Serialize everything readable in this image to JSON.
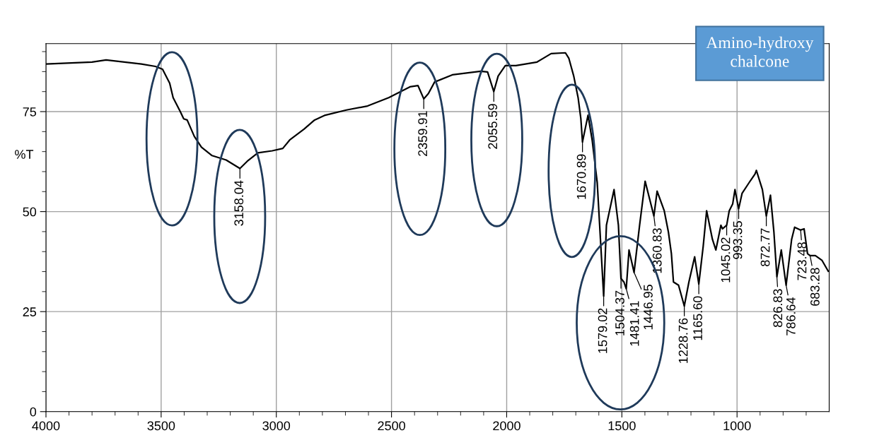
{
  "chart_data": {
    "type": "line",
    "ylabel": "%T",
    "x": [
      4000,
      3800,
      3739,
      3586,
      3525,
      3494,
      3463,
      3448,
      3417,
      3402,
      3387,
      3356,
      3325,
      3279,
      3218,
      3158,
      3126,
      3080,
      3018,
      2972,
      2942,
      2880,
      2834,
      2788,
      2696,
      2604,
      2512,
      2420,
      2385,
      2360,
      2340,
      2313,
      2236,
      2113,
      2083,
      2056,
      2037,
      2006,
      1960,
      1868,
      1807,
      1745,
      1730,
      1709,
      1690,
      1678,
      1671,
      1647,
      1629,
      1607,
      1579,
      1567,
      1534,
      1515,
      1504,
      1491,
      1481,
      1469,
      1447,
      1423,
      1399,
      1361,
      1347,
      1316,
      1298,
      1285,
      1276,
      1254,
      1229,
      1209,
      1184,
      1166,
      1147,
      1132,
      1107,
      1092,
      1070,
      1063,
      1045,
      1034,
      1019,
      1009,
      993,
      978,
      947,
      922,
      916,
      890,
      873,
      855,
      840,
      827,
      808,
      787,
      763,
      750,
      724,
      709,
      694,
      683,
      660,
      631,
      604
    ],
    "series": [
      {
        "color": "#000000",
        "values": [
          86.9,
          87.4,
          87.9,
          86.9,
          86.3,
          85.6,
          82.1,
          78.5,
          75.0,
          73.2,
          72.9,
          68.8,
          66.1,
          64.0,
          62.9,
          60.8,
          62.6,
          64.7,
          65.2,
          65.8,
          67.9,
          70.6,
          72.9,
          74.1,
          75.4,
          76.4,
          78.5,
          81.2,
          81.5,
          78.2,
          79.5,
          82.4,
          84.2,
          85.1,
          84.9,
          80.0,
          83.9,
          86.5,
          86.5,
          87.4,
          89.5,
          89.7,
          88.3,
          83.9,
          78.5,
          73.2,
          67.4,
          74.1,
          67.9,
          57.3,
          28.9,
          46.6,
          55.5,
          46.6,
          33.3,
          32.4,
          30.7,
          40.4,
          34.8,
          46.6,
          57.6,
          48.9,
          55.1,
          50.2,
          44.9,
          39.5,
          32.4,
          31.6,
          26.4,
          32.4,
          38.7,
          31.9,
          41.3,
          50.2,
          43.1,
          40.4,
          46.6,
          45.7,
          46.6,
          50.2,
          51.9,
          55.5,
          50.7,
          54.6,
          57.3,
          59.4,
          60.3,
          55.5,
          48.9,
          54.1,
          44.9,
          33.7,
          40.4,
          31.6,
          43.1,
          46.1,
          45.4,
          45.7,
          39.5,
          39.0,
          39.0,
          37.8,
          35.1
        ]
      }
    ],
    "xlim": [
      4000,
      600
    ],
    "xticks": [
      4000,
      {
        "value": 3900,
        "label": null
      },
      {
        "value": 3800,
        "label": null
      },
      {
        "value": 3700,
        "label": null
      },
      {
        "value": 3600,
        "label": null
      },
      3500,
      {
        "value": 3400,
        "label": null
      },
      {
        "value": 3300,
        "label": null
      },
      {
        "value": 3200,
        "label": null
      },
      {
        "value": 3100,
        "label": null
      },
      3000,
      {
        "value": 2900,
        "label": null
      },
      {
        "value": 2800,
        "label": null
      },
      {
        "value": 2700,
        "label": null
      },
      {
        "value": 2600,
        "label": null
      },
      2500,
      {
        "value": 2400,
        "label": null
      },
      {
        "value": 2300,
        "label": null
      },
      {
        "value": 2200,
        "label": null
      },
      {
        "value": 2100,
        "label": null
      },
      2000,
      {
        "value": 1900,
        "label": null
      },
      {
        "value": 1800,
        "label": null
      },
      {
        "value": 1700,
        "label": null
      },
      {
        "value": 1600,
        "label": null
      },
      1500,
      {
        "value": 1400,
        "label": null
      },
      {
        "value": 1300,
        "label": null
      },
      {
        "value": 1200,
        "label": null
      },
      {
        "value": 1100,
        "label": null
      },
      1000,
      {
        "value": 900,
        "label": null
      },
      {
        "value": 800,
        "label": null
      },
      {
        "value": 700,
        "label": null
      }
    ],
    "ylim": [
      0,
      92
    ],
    "yticks": [
      0,
      {
        "value": 5,
        "label": null
      },
      {
        "value": 10,
        "label": null
      },
      {
        "value": 15,
        "label": null
      },
      {
        "value": 20,
        "label": null
      },
      25,
      {
        "value": 30,
        "label": null
      },
      {
        "value": 35,
        "label": null
      },
      {
        "value": 40,
        "label": null
      },
      {
        "value": 45,
        "label": null
      },
      50,
      {
        "value": 55,
        "label": null
      },
      {
        "value": 60,
        "label": null
      },
      {
        "value": 65,
        "label": null
      },
      {
        "value": 70,
        "label": null
      },
      75,
      {
        "value": 80,
        "label": null
      },
      {
        "value": 85,
        "label": null
      },
      {
        "value": 90,
        "label": null
      }
    ],
    "grid": true,
    "annotations": [
      "Amino-hydroxy\nchalcone",
      {
        "text": "3158.04",
        "x": 3158,
        "y": 60.8
      },
      {
        "text": "2359.91",
        "x": 2360,
        "y": 78.2
      },
      {
        "text": "2055.59",
        "x": 2056,
        "y": 80.0
      },
      {
        "text": "1670.89",
        "x": 1671,
        "y": 67.4
      },
      {
        "text": "1579.02",
        "x": 1579,
        "y": 28.9
      },
      {
        "text": "1504.37",
        "x": 1504,
        "y": 33.3
      },
      {
        "text": "1481.41",
        "x": 1481,
        "y": 30.7
      },
      {
        "text": "1446.95",
        "x": 1447,
        "y": 34.8
      },
      {
        "text": "1360.83",
        "x": 1361,
        "y": 48.9
      },
      {
        "text": "1228.76",
        "x": 1229,
        "y": 26.4
      },
      {
        "text": "1165.60",
        "x": 1166,
        "y": 31.9
      },
      {
        "text": "1045.02",
        "x": 1045,
        "y": 46.6
      },
      {
        "text": "993.35",
        "x": 993,
        "y": 50.7
      },
      {
        "text": "872.77",
        "x": 873,
        "y": 48.9
      },
      {
        "text": "826.83",
        "x": 827,
        "y": 33.7
      },
      {
        "text": "786.64",
        "x": 787,
        "y": 31.6
      },
      {
        "text": "723.48",
        "x": 724,
        "y": 45.4
      },
      {
        "text": "683.28",
        "x": 683,
        "y": 39.0
      }
    ]
  }
}
